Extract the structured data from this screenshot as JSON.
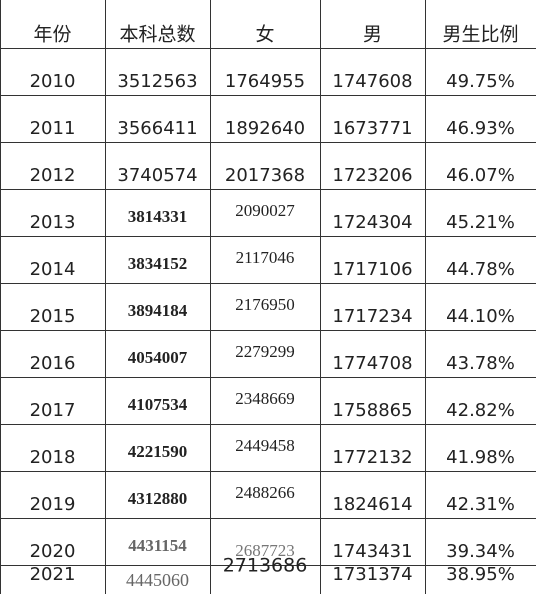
{
  "table": {
    "header": [
      "年份",
      "本科总数",
      "女",
      "男",
      "男生比例"
    ],
    "rows": [
      [
        "2010",
        "3512563",
        "1764955",
        "1747608",
        "49.75%"
      ],
      [
        "2011",
        "3566411",
        "1892640",
        "1673771",
        "46.93%"
      ],
      [
        "2012",
        "3740574",
        "2017368",
        "1723206",
        "46.07%"
      ],
      [
        "2013",
        "3814331",
        "2090027",
        "1724304",
        "45.21%"
      ],
      [
        "2014",
        "3834152",
        "2117046",
        "1717106",
        "44.78%"
      ],
      [
        "2015",
        "3894184",
        "2176950",
        "1717234",
        "44.10%"
      ],
      [
        "2016",
        "4054007",
        "2279299",
        "1774708",
        "43.78%"
      ],
      [
        "2017",
        "4107534",
        "2348669",
        "1758865",
        "42.82%"
      ],
      [
        "2018",
        "4221590",
        "2449458",
        "1772132",
        "41.98%"
      ],
      [
        "2019",
        "4312880",
        "2488266",
        "1824614",
        "42.31%"
      ],
      [
        "2020",
        "4431154",
        "2687723",
        "1743431",
        "39.34%"
      ],
      [
        "2021",
        "4445060",
        "2713686",
        "1731374",
        "38.95%"
      ]
    ]
  }
}
